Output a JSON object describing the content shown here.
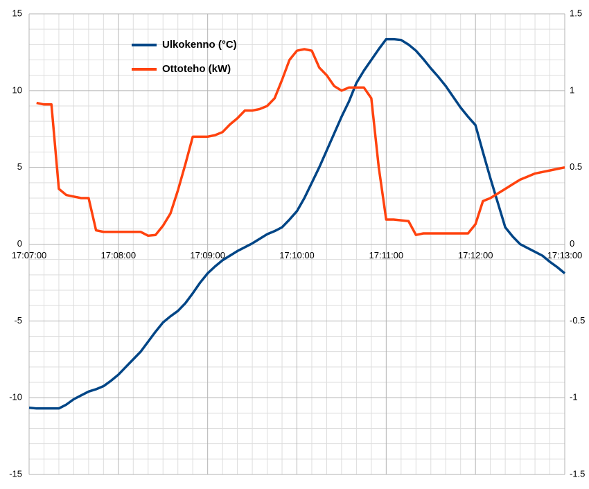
{
  "chart_data": {
    "type": "line",
    "x": [
      "17:07:00",
      "17:07:05",
      "17:07:10",
      "17:07:15",
      "17:07:20",
      "17:07:25",
      "17:07:30",
      "17:07:35",
      "17:07:40",
      "17:07:45",
      "17:07:50",
      "17:07:55",
      "17:08:00",
      "17:08:05",
      "17:08:10",
      "17:08:15",
      "17:08:20",
      "17:08:25",
      "17:08:30",
      "17:08:35",
      "17:08:40",
      "17:08:45",
      "17:08:50",
      "17:08:55",
      "17:09:00",
      "17:09:05",
      "17:09:10",
      "17:09:15",
      "17:09:20",
      "17:09:25",
      "17:09:30",
      "17:09:35",
      "17:09:40",
      "17:09:45",
      "17:09:50",
      "17:09:55",
      "17:10:00",
      "17:10:05",
      "17:10:10",
      "17:10:15",
      "17:10:20",
      "17:10:25",
      "17:10:30",
      "17:10:35",
      "17:10:40",
      "17:10:45",
      "17:10:50",
      "17:10:55",
      "17:11:00",
      "17:11:05",
      "17:11:10",
      "17:11:15",
      "17:11:20",
      "17:11:25",
      "17:11:30",
      "17:11:35",
      "17:11:40",
      "17:11:45",
      "17:11:50",
      "17:11:55",
      "17:12:00",
      "17:12:05",
      "17:12:10",
      "17:12:15",
      "17:12:20",
      "17:12:25",
      "17:12:30",
      "17:12:35",
      "17:12:40",
      "17:12:45",
      "17:12:50",
      "17:12:55",
      "17:13:00"
    ],
    "series": [
      {
        "name": "Ulkokenno (°C)",
        "color": "#004586",
        "values": [
          -10.65,
          -10.7,
          -10.7,
          -10.7,
          -10.7,
          -10.45,
          -10.1,
          -9.85,
          -9.6,
          -9.45,
          -9.25,
          -8.9,
          -8.5,
          -8.0,
          -7.5,
          -7.0,
          -6.35,
          -5.7,
          -5.1,
          -4.7,
          -4.35,
          -3.85,
          -3.2,
          -2.5,
          -1.9,
          -1.45,
          -1.05,
          -0.75,
          -0.45,
          -0.2,
          0.05,
          0.35,
          0.65,
          0.85,
          1.1,
          1.6,
          2.15,
          3.0,
          4.0,
          5.0,
          6.1,
          7.2,
          8.3,
          9.3,
          10.5,
          11.3,
          12.0,
          12.7,
          13.35,
          13.35,
          13.3,
          13.0,
          12.6,
          12.05,
          11.45,
          10.9,
          10.3,
          9.6,
          8.9,
          8.3,
          7.75,
          6.0,
          4.3,
          2.7,
          1.1,
          0.5,
          0.0,
          -0.25,
          -0.5,
          -0.75,
          -1.15,
          -1.5,
          -1.9
        ]
      },
      {
        "name": "Ottoteho (kW)",
        "color": "#ff420e",
        "axis": "y2",
        "values": [
          null,
          0.92,
          0.91,
          0.91,
          0.36,
          0.32,
          0.31,
          0.3,
          0.3,
          0.09,
          0.08,
          0.08,
          0.08,
          0.08,
          0.08,
          0.08,
          0.055,
          0.06,
          0.12,
          0.2,
          0.35,
          0.52,
          0.7,
          0.7,
          0.7,
          0.71,
          0.73,
          0.78,
          0.82,
          0.87,
          0.87,
          0.88,
          0.9,
          0.95,
          1.07,
          1.2,
          1.26,
          1.27,
          1.26,
          1.15,
          1.1,
          1.03,
          1.0,
          1.02,
          1.02,
          1.02,
          0.95,
          0.5,
          0.16,
          0.16,
          0.155,
          0.15,
          0.06,
          0.07,
          0.07,
          0.07,
          0.07,
          0.07,
          0.07,
          0.07,
          0.13,
          0.28,
          0.3,
          0.33,
          0.36,
          0.39,
          0.42,
          0.44,
          0.46,
          0.47,
          0.48,
          0.49,
          0.5
        ]
      }
    ],
    "xlim": [
      "17:07:00",
      "17:13:00"
    ],
    "xticks": [
      "17:07:00",
      "17:08:00",
      "17:09:00",
      "17:10:00",
      "17:11:00",
      "17:12:00",
      "17:13:00"
    ],
    "ylim": [
      -15,
      15
    ],
    "yticks": [
      -15,
      -10,
      -5,
      0,
      5,
      10,
      15
    ],
    "y2lim": [
      -1.5,
      1.5
    ],
    "y2ticks": [
      -1.5,
      -1,
      -0.5,
      0,
      0.5,
      1,
      1.5
    ],
    "grid": true,
    "minor_grid": true,
    "legend": "top-left"
  }
}
